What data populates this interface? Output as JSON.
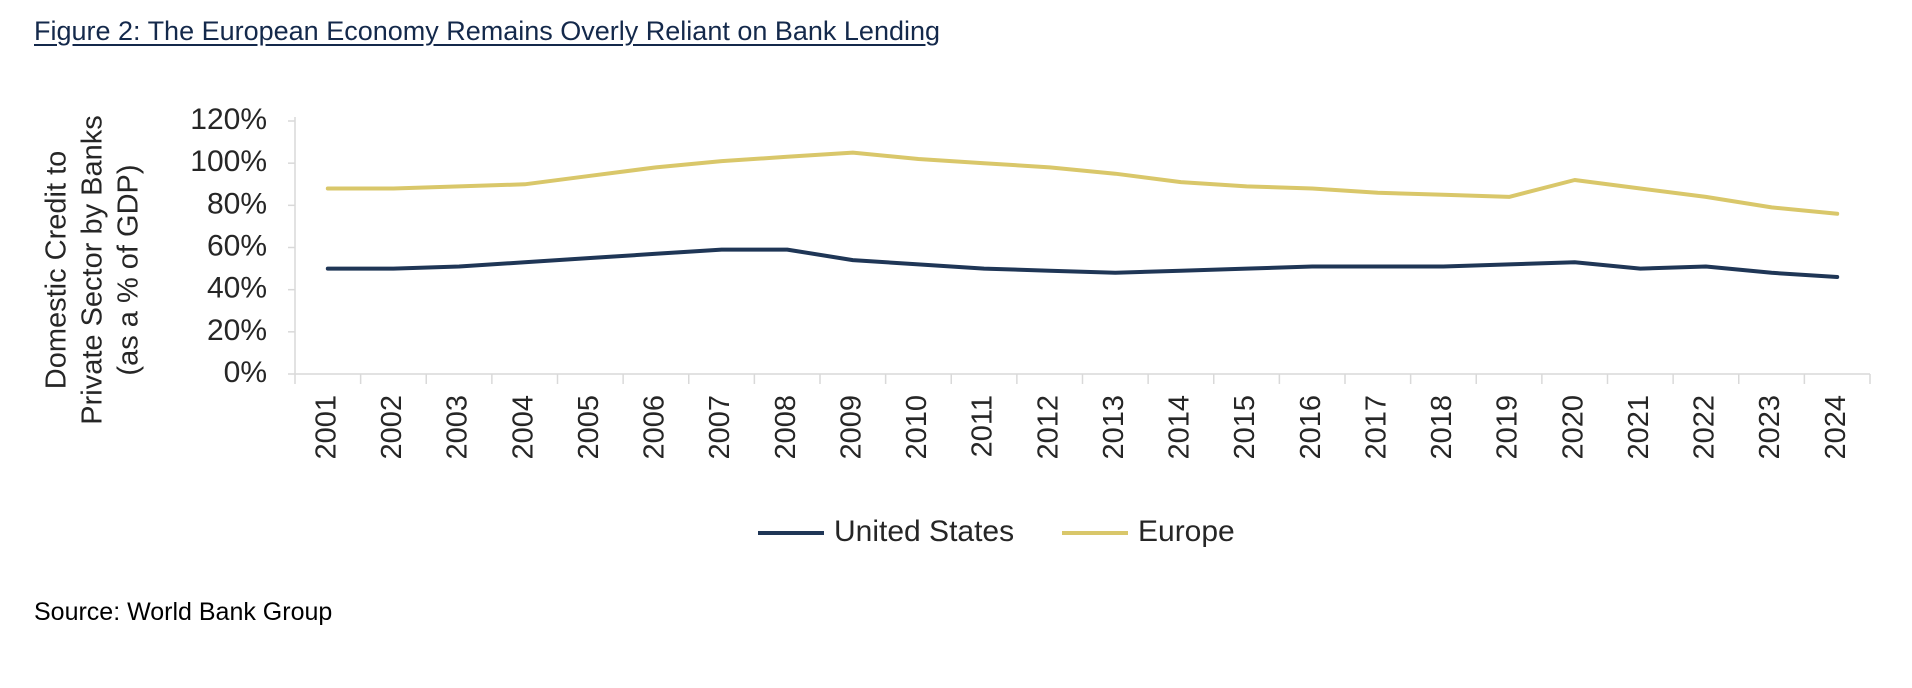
{
  "figure": {
    "title": "Figure 2: The European Economy Remains Overly Reliant on Bank Lending",
    "source": "Source: World Bank Group"
  },
  "colors": {
    "title": "#14294b",
    "united_states": "#1f3656",
    "europe": "#d9c76a",
    "axis": "#d9d9d9",
    "text": "#262626"
  },
  "chart_data": {
    "type": "line",
    "title": "",
    "xlabel": "",
    "ylabel_lines": [
      "Domestic Credit to",
      "Private Sector by Banks",
      "(as a % of GDP)"
    ],
    "x": [
      "2001",
      "2002",
      "2003",
      "2004",
      "2005",
      "2006",
      "2007",
      "2008",
      "2009",
      "2010",
      "2011",
      "2012",
      "2013",
      "2014",
      "2015",
      "2016",
      "2017",
      "2018",
      "2019",
      "2020",
      "2021",
      "2022",
      "2023",
      "2024"
    ],
    "yticks": [
      "0%",
      "20%",
      "40%",
      "60%",
      "80%",
      "100%",
      "120%"
    ],
    "ylim": [
      0,
      120
    ],
    "y_unit": "%",
    "grid": false,
    "legend_position": "bottom",
    "series": [
      {
        "name": "United States",
        "values": [
          50,
          50,
          51,
          53,
          55,
          57,
          59,
          59,
          54,
          52,
          50,
          49,
          48,
          49,
          50,
          51,
          51,
          51,
          52,
          53,
          50,
          51,
          48,
          46
        ]
      },
      {
        "name": "Europe",
        "values": [
          88,
          88,
          89,
          90,
          94,
          98,
          101,
          103,
          105,
          102,
          100,
          98,
          95,
          91,
          89,
          88,
          86,
          85,
          84,
          92,
          88,
          84,
          79,
          76
        ]
      }
    ]
  }
}
